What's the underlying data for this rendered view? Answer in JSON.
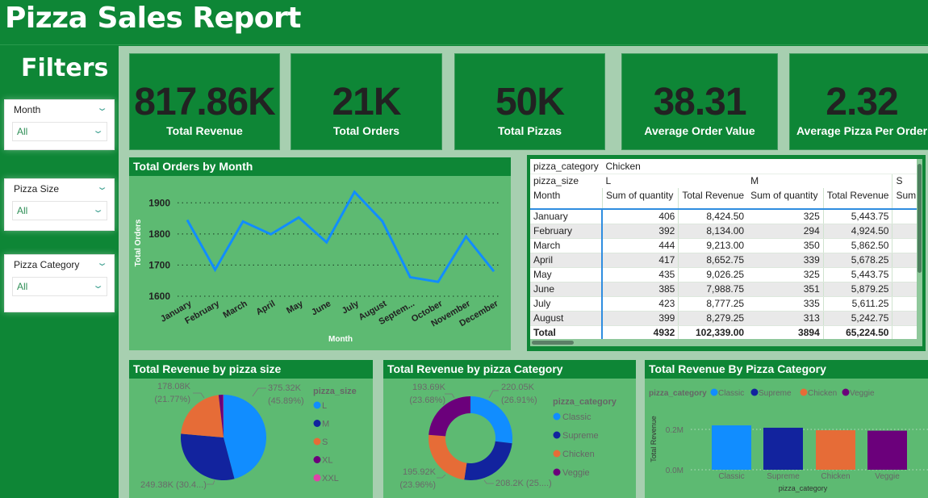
{
  "header": {
    "title": "Pizza Sales Report"
  },
  "sidebar": {
    "title": "Filters",
    "slicers": [
      {
        "label": "Month",
        "value": "All"
      },
      {
        "label": "Pizza Size",
        "value": "All"
      },
      {
        "label": "Pizza Category",
        "value": "All"
      }
    ]
  },
  "kpis": [
    {
      "value": "817.86K",
      "label": "Total Revenue"
    },
    {
      "value": "21K",
      "label": "Total Orders"
    },
    {
      "value": "50K",
      "label": "Total Pizzas"
    },
    {
      "value": "38.31",
      "label": "Average Order Value"
    },
    {
      "value": "2.32",
      "label": "Average Pizza Per Order"
    }
  ],
  "colors": {
    "dark_green": "#0e8636",
    "panel_green": "#5dba72",
    "canvas": "#a7cfb0",
    "classic": "#118dff",
    "supreme": "#12239e",
    "chicken": "#e66c37",
    "veggie": "#6b007b",
    "xxl": "#e044a7"
  },
  "matrix": {
    "row1": {
      "label": "pizza_category",
      "value": "Chicken"
    },
    "row2": {
      "label": "pizza_size",
      "sizes": [
        "L",
        "M",
        "S"
      ]
    },
    "row3": {
      "label": "Month",
      "columns": [
        "Sum of quantity",
        "Total Revenue",
        "Sum of quantity",
        "Total Revenue",
        "Sum"
      ]
    },
    "rows": [
      {
        "month": "January",
        "l_qty": "406",
        "l_rev": "8,424.50",
        "m_qty": "325",
        "m_rev": "5,443.75"
      },
      {
        "month": "February",
        "l_qty": "392",
        "l_rev": "8,134.00",
        "m_qty": "294",
        "m_rev": "4,924.50"
      },
      {
        "month": "March",
        "l_qty": "444",
        "l_rev": "9,213.00",
        "m_qty": "350",
        "m_rev": "5,862.50"
      },
      {
        "month": "April",
        "l_qty": "417",
        "l_rev": "8,652.75",
        "m_qty": "339",
        "m_rev": "5,678.25"
      },
      {
        "month": "May",
        "l_qty": "435",
        "l_rev": "9,026.25",
        "m_qty": "325",
        "m_rev": "5,443.75"
      },
      {
        "month": "June",
        "l_qty": "385",
        "l_rev": "7,988.75",
        "m_qty": "351",
        "m_rev": "5,879.25"
      },
      {
        "month": "July",
        "l_qty": "423",
        "l_rev": "8,777.25",
        "m_qty": "335",
        "m_rev": "5,611.25"
      },
      {
        "month": "August",
        "l_qty": "399",
        "l_rev": "8,279.25",
        "m_qty": "313",
        "m_rev": "5,242.75"
      }
    ],
    "total": {
      "label": "Total",
      "l_qty": "4932",
      "l_rev": "102,339.00",
      "m_qty": "3894",
      "m_rev": "65,224.50"
    }
  },
  "chart_data": [
    {
      "type": "line",
      "title": "Total Orders by Month",
      "xlabel": "Month",
      "ylabel": "Total Orders",
      "categories": [
        "January",
        "February",
        "March",
        "April",
        "May",
        "June",
        "July",
        "August",
        "Septem...",
        "October",
        "November",
        "December"
      ],
      "values": [
        1845,
        1685,
        1840,
        1799,
        1853,
        1773,
        1935,
        1841,
        1661,
        1646,
        1792,
        1680
      ],
      "yticks": [
        "1600",
        "1700",
        "1800",
        "1900"
      ],
      "ylim": [
        1600,
        1950
      ],
      "grid": true
    },
    {
      "type": "pie",
      "title": "Total Revenue by pizza size",
      "legend_title": "pizza_size",
      "legend_position": "right",
      "categories": [
        "L",
        "M",
        "S",
        "XL",
        "XXL"
      ],
      "values": [
        375.32,
        249.38,
        178.08,
        14.08,
        1.0
      ],
      "unit": "K",
      "data_labels": [
        {
          "text1": "375.32K",
          "text2": "(45.89%)"
        },
        {
          "text1": "249.38K (30.4...)",
          "text2": ""
        },
        {
          "text1": "178.08K",
          "text2": "(21.77%)"
        }
      ]
    },
    {
      "type": "pie",
      "subtype": "donut",
      "title": "Total Revenue by pizza Category",
      "legend_title": "pizza_category",
      "legend_position": "right",
      "categories": [
        "Classic",
        "Supreme",
        "Chicken",
        "Veggie"
      ],
      "values": [
        220.05,
        208.2,
        195.92,
        193.69
      ],
      "unit": "K",
      "data_labels": [
        {
          "text1": "220.05K",
          "text2": "(26.91%)"
        },
        {
          "text1": "208.2K (25....)",
          "text2": ""
        },
        {
          "text1": "195.92K",
          "text2": "(23.96%)"
        },
        {
          "text1": "193.69K",
          "text2": "(23.68%)"
        }
      ]
    },
    {
      "type": "bar",
      "title": "Total Revenue By Pizza Category",
      "legend_title": "pizza_category",
      "legend_position": "top-left",
      "xlabel": "pizza_category",
      "ylabel": "Total Revenue",
      "categories": [
        "Classic",
        "Supreme",
        "Chicken",
        "Veggie"
      ],
      "values": [
        220050,
        208200,
        195920,
        193690
      ],
      "yticks": [
        "0.0M",
        "0.2M"
      ],
      "ylim": [
        0,
        250000
      ],
      "grid": true
    }
  ]
}
